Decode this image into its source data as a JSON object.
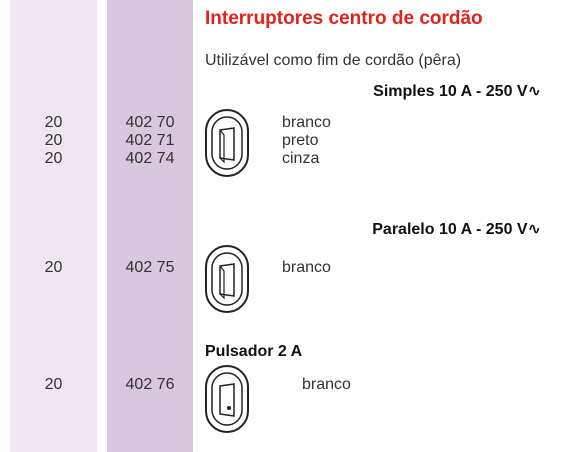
{
  "title": "Interruptores centro de cordão",
  "subtitle": "Utilizável como fim de cordão (pêra)",
  "sections": [
    {
      "heading": "Simples 10 A - 250 V∿",
      "items": [
        {
          "qty": "20",
          "ref": "402 70",
          "color": "branco"
        },
        {
          "qty": "20",
          "ref": "402 71",
          "color": "preto"
        },
        {
          "qty": "20",
          "ref": "402 74",
          "color": "cinza"
        }
      ]
    },
    {
      "heading": "Paralelo 10 A - 250 V∿",
      "items": [
        {
          "qty": "20",
          "ref": "402 75",
          "color": "branco"
        }
      ]
    },
    {
      "heading": "Pulsador 2 A",
      "items": [
        {
          "qty": "20",
          "ref": "402 76",
          "color": "branco"
        }
      ]
    }
  ]
}
